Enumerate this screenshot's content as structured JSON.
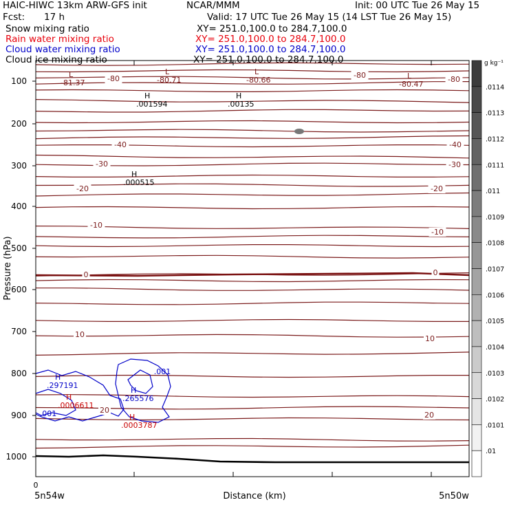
{
  "header": {
    "title": "HAIC-HIWC 13km ARW-GFS init",
    "org": "NCAR/MMM",
    "init": "Init: 00 UTC Tue 26 May 15",
    "fcst_label": "Fcst:",
    "fcst_value": "17 h",
    "valid": "Valid: 17 UTC Tue 26 May 15 (14 LST Tue 26 May 15)"
  },
  "fields": [
    {
      "name": "Snow mixing ratio",
      "xy": "XY= 251.0,100.0 to 284.7,100.0",
      "color": "#000000"
    },
    {
      "name": "Rain water mixing ratio",
      "xy": "XY= 251.0,100.0 to 284.7,100.0",
      "color": "#e8000b"
    },
    {
      "name": "Cloud water mixing ratio",
      "xy": "XY= 251.0,100.0 to 284.7,100.0",
      "color": "#0000c8"
    },
    {
      "name": "Cloud ice mixing ratio",
      "xy": "XY= 251.0,100.0 to 284.7,100.0",
      "color": "#000000"
    }
  ],
  "colors": {
    "temperature_contour": "#7a1a1a",
    "zero_isotherm": "#7a1010",
    "cloud_water": "#0000c8",
    "rain_water": "#c80000",
    "terrain": "#000000"
  },
  "chart_data": {
    "type": "line",
    "title": "",
    "xlabel": "Distance (km)",
    "ylabel": "Pressure (hPa)",
    "ylim": [
      1050,
      50
    ],
    "y_scale": "log",
    "x_start_label": "0",
    "x_left_label": "5n54w",
    "x_right_label": "5n50w",
    "y_ticks": [
      100,
      200,
      300,
      400,
      500,
      600,
      700,
      800,
      900,
      1000
    ],
    "contour_labels": [
      {
        "text": "-80",
        "series": "temperature"
      },
      {
        "text": "-80",
        "series": "temperature"
      },
      {
        "text": "-80",
        "series": "temperature"
      },
      {
        "text": "-40",
        "series": "temperature"
      },
      {
        "text": "-40",
        "series": "temperature"
      },
      {
        "text": "-30",
        "series": "temperature"
      },
      {
        "text": "-30",
        "series": "temperature"
      },
      {
        "text": "-20",
        "series": "temperature"
      },
      {
        "text": "-20",
        "series": "temperature"
      },
      {
        "text": "-10",
        "series": "temperature"
      },
      {
        "text": "-10",
        "series": "temperature"
      },
      {
        "text": "0",
        "series": "temperature"
      },
      {
        "text": "0",
        "series": "temperature"
      },
      {
        "text": "10",
        "series": "temperature"
      },
      {
        "text": "10",
        "series": "temperature"
      },
      {
        "text": "20",
        "series": "temperature"
      },
      {
        "text": "20",
        "series": "temperature"
      },
      {
        "text": ".001",
        "series": "cloud_water"
      },
      {
        "text": ".001",
        "series": "cloud_water"
      }
    ],
    "extrema": [
      {
        "type": "L",
        "value": "-81.37",
        "series": "temperature"
      },
      {
        "type": "L",
        "value": "-80.71",
        "series": "temperature"
      },
      {
        "type": "L",
        "value": "-80.66",
        "series": "temperature"
      },
      {
        "type": "L",
        "value": "-80.47",
        "series": "temperature"
      },
      {
        "type": "H",
        "value": ".001594",
        "series": "cloud_ice"
      },
      {
        "type": "H",
        "value": ".00135",
        "series": "cloud_ice"
      },
      {
        "type": "H",
        "value": ".000515",
        "series": "cloud_ice"
      },
      {
        "type": "H",
        "value": ".297191",
        "series": "cloud_water"
      },
      {
        "type": "H",
        "value": ".265576",
        "series": "cloud_water"
      },
      {
        "type": "H",
        "value": ".0006611",
        "series": "rain_water"
      },
      {
        "type": "H",
        "value": ".0003787",
        "series": "rain_water"
      }
    ],
    "colorbar": {
      "unit": "g kg⁻¹",
      "labels": [
        ".0114",
        ".0113",
        ".0112",
        ".0111",
        ".011",
        ".0109",
        ".0108",
        ".0107",
        ".0106",
        ".0105",
        ".0104",
        ".0103",
        ".0102",
        ".0101",
        ".01"
      ]
    }
  }
}
